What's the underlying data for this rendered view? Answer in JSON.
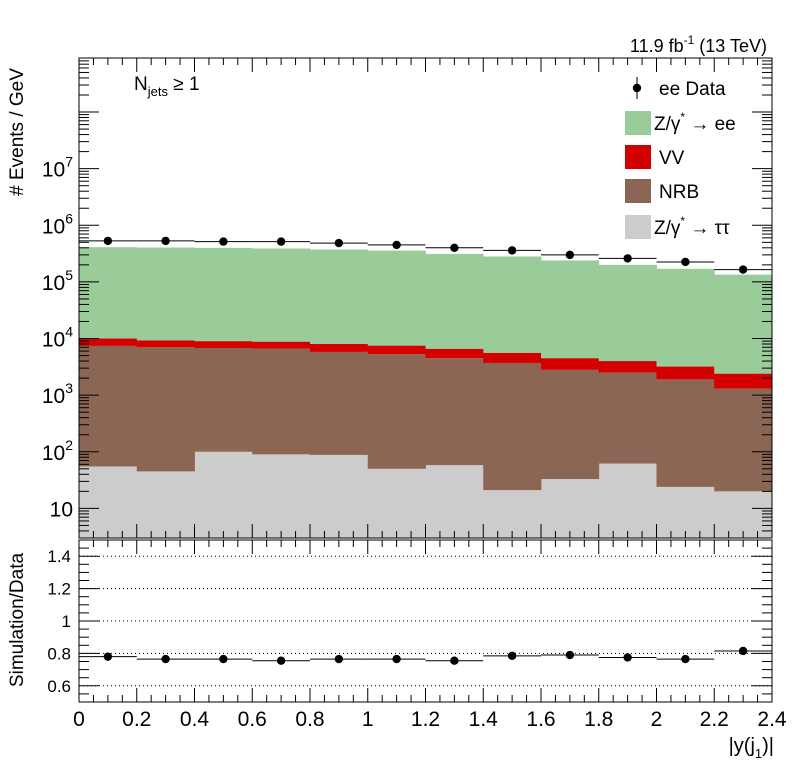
{
  "chart_data": {
    "type": "area",
    "stacked": true,
    "log_y": true,
    "lumi": {
      "main": "11.9 fb",
      "sup": "-1",
      "rest": " (13 TeV)"
    },
    "selection": {
      "main": "N",
      "sub": "jets",
      "rest": " ≥ 1"
    },
    "ylabel": "# Events / GeV",
    "ratio_ylabel": "Simulation/Data",
    "xlabel": {
      "pre": "|y(j",
      "sub": "1",
      "post": ")|"
    },
    "xlim": [
      0,
      2.4
    ],
    "ylim": [
      3,
      900000000
    ],
    "ratio_ylim": [
      0.5,
      1.5
    ],
    "bin_edges": [
      0,
      0.2,
      0.4,
      0.6,
      0.8,
      1.0,
      1.2,
      1.4,
      1.6,
      1.8,
      2.0,
      2.2,
      2.4
    ],
    "x_ticks": [
      {
        "v": 0,
        "label": "0"
      },
      {
        "v": 0.2,
        "label": "0.2"
      },
      {
        "v": 0.4,
        "label": "0.4"
      },
      {
        "v": 0.6,
        "label": "0.6"
      },
      {
        "v": 0.8,
        "label": "0.8"
      },
      {
        "v": 1.0,
        "label": "1"
      },
      {
        "v": 1.2,
        "label": "1.2"
      },
      {
        "v": 1.4,
        "label": "1.4"
      },
      {
        "v": 1.6,
        "label": "1.6"
      },
      {
        "v": 1.8,
        "label": "1.8"
      },
      {
        "v": 2.0,
        "label": "2"
      },
      {
        "v": 2.2,
        "label": "2.2"
      },
      {
        "v": 2.4,
        "label": "2.4"
      }
    ],
    "y_ticks": [
      {
        "v": 10,
        "base": "10",
        "exp": ""
      },
      {
        "v": 100,
        "base": "10",
        "exp": "2"
      },
      {
        "v": 1000,
        "base": "10",
        "exp": "3"
      },
      {
        "v": 10000,
        "base": "10",
        "exp": "4"
      },
      {
        "v": 100000,
        "base": "10",
        "exp": "5"
      },
      {
        "v": 1000000,
        "base": "10",
        "exp": "6"
      },
      {
        "v": 10000000,
        "base": "10",
        "exp": "7"
      }
    ],
    "ratio_ticks": [
      {
        "v": 0.6,
        "label": "0.6"
      },
      {
        "v": 0.8,
        "label": "0.8"
      },
      {
        "v": 1.0,
        "label": "1"
      },
      {
        "v": 1.2,
        "label": "1.2"
      },
      {
        "v": 1.4,
        "label": "1.4"
      }
    ],
    "series": [
      {
        "name": "Z/γ* → ττ",
        "color": "#cccccc",
        "values": [
          55,
          45,
          100,
          90,
          88,
          50,
          58,
          21,
          33,
          62,
          24,
          20
        ]
      },
      {
        "name": "NRB",
        "color": "#8b6654",
        "values": [
          7345,
          6955,
          6700,
          6510,
          5712,
          5250,
          4442,
          3679,
          2767,
          2438,
          1876,
          1280
        ]
      },
      {
        "name": "VV",
        "color": "#d40000",
        "values": [
          2600,
          2300,
          2200,
          2200,
          2200,
          2200,
          2100,
          1900,
          1700,
          1500,
          1300,
          1100
        ]
      },
      {
        "name": "Z/γ* → ee",
        "color": "#99cc99",
        "values": [
          400000,
          395000,
          390000,
          380000,
          365000,
          350000,
          305000,
          275000,
          235000,
          196000,
          167000,
          132000
        ]
      }
    ],
    "data": {
      "name": "ee Data",
      "x": [
        0.1,
        0.3,
        0.5,
        0.7,
        0.9,
        1.1,
        1.3,
        1.5,
        1.7,
        1.9,
        2.1,
        2.3
      ],
      "values": [
        530000,
        530000,
        515000,
        515000,
        485000,
        450000,
        400000,
        360000,
        300000,
        260000,
        225000,
        165000
      ]
    },
    "ratio": {
      "x": [
        0.1,
        0.3,
        0.5,
        0.7,
        0.9,
        1.1,
        1.3,
        1.5,
        1.7,
        1.9,
        2.1,
        2.3
      ],
      "values": [
        0.78,
        0.765,
        0.765,
        0.755,
        0.765,
        0.765,
        0.755,
        0.785,
        0.79,
        0.775,
        0.765,
        0.815
      ]
    },
    "legend": {
      "placement": "top-right",
      "entries": [
        {
          "kind": "marker",
          "text": "ee Data"
        },
        {
          "kind": "box",
          "color": "#99cc99",
          "main": "Z/γ",
          "sup": "*",
          "rest": " → ee"
        },
        {
          "kind": "box",
          "color": "#d40000",
          "main": "VV",
          "sup": "",
          "rest": ""
        },
        {
          "kind": "box",
          "color": "#8b6654",
          "main": "NRB",
          "sup": "",
          "rest": ""
        },
        {
          "kind": "box",
          "color": "#cccccc",
          "main": "Z/γ",
          "sup": "*",
          "rest": " → ττ"
        }
      ]
    },
    "grid_ratio": true
  }
}
